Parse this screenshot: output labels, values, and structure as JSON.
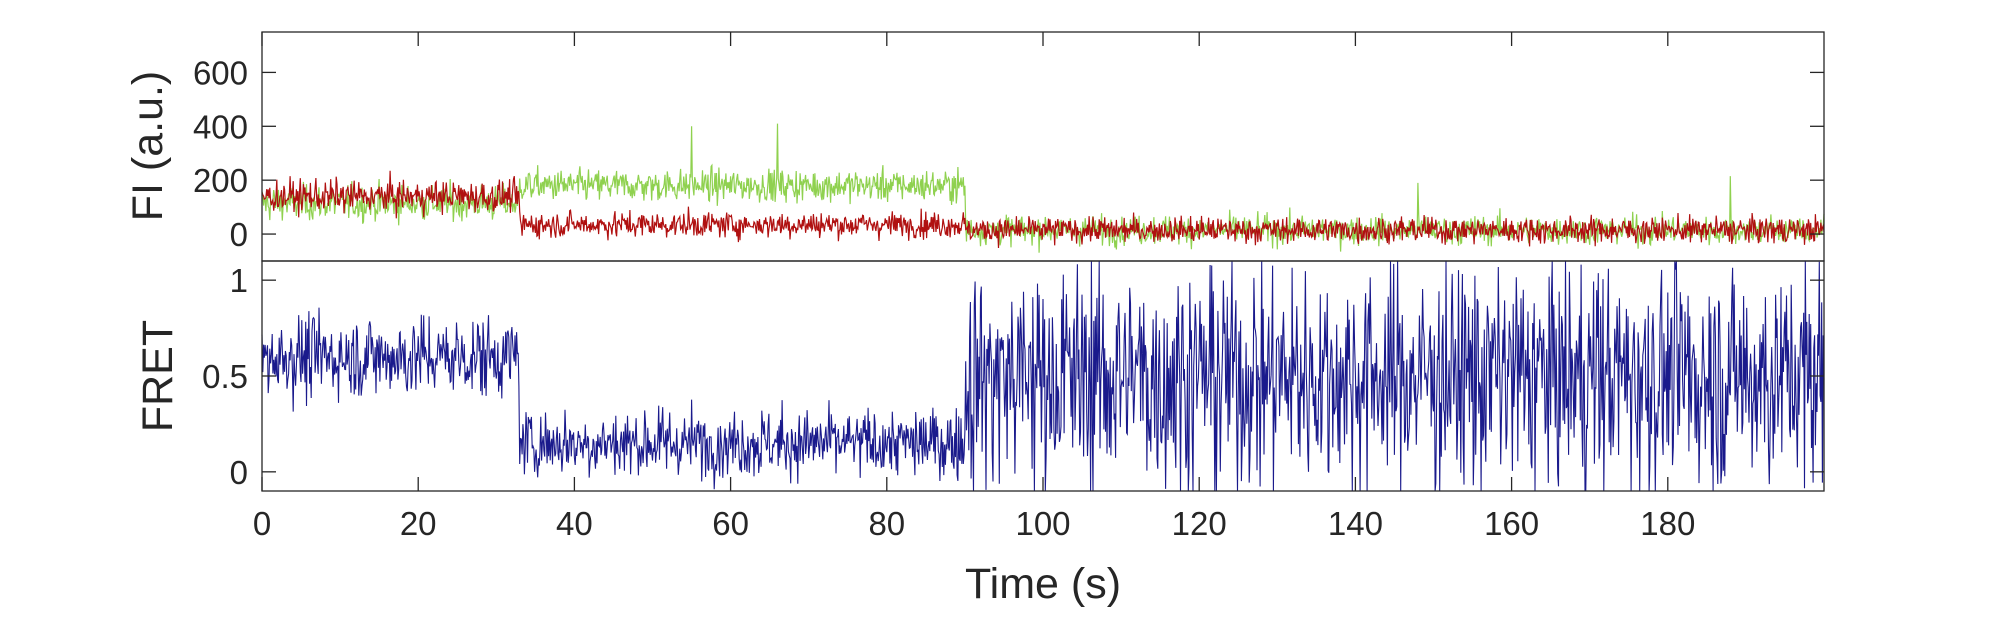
{
  "chart_data": [
    {
      "type": "line",
      "panel": "top",
      "ylabel": "FI (a.u.)",
      "xlim": [
        0,
        200
      ],
      "ylim": [
        -100,
        750
      ],
      "yticks": [
        0,
        200,
        400,
        600
      ],
      "grid": false,
      "series": [
        {
          "color": "#8fd14f",
          "description": "donor trace",
          "segments": [
            {
              "t_start": 0,
              "t_end": 33,
              "mean": 115,
              "noise": 55
            },
            {
              "t_start": 33,
              "t_end": 90,
              "mean": 180,
              "noise": 50
            },
            {
              "t_start": 90,
              "t_end": 200,
              "mean": 15,
              "noise": 45
            }
          ],
          "peaks": [
            {
              "t": 55,
              "value": 400
            },
            {
              "t": 66,
              "value": 410
            },
            {
              "t": 148,
              "value": 190
            },
            {
              "t": 188,
              "value": 215
            }
          ]
        },
        {
          "color": "#b01010",
          "description": "acceptor trace",
          "segments": [
            {
              "t_start": 0,
              "t_end": 33,
              "mean": 140,
              "noise": 50
            },
            {
              "t_start": 33,
              "t_end": 90,
              "mean": 35,
              "noise": 40
            },
            {
              "t_start": 90,
              "t_end": 200,
              "mean": 15,
              "noise": 40
            }
          ]
        }
      ]
    },
    {
      "type": "line",
      "panel": "bottom",
      "xlabel": "Time (s)",
      "ylabel": "FRET",
      "xlim": [
        0,
        200
      ],
      "ylim": [
        -0.1,
        1.1
      ],
      "xticks": [
        0,
        20,
        40,
        60,
        80,
        100,
        120,
        140,
        160,
        180
      ],
      "yticks": [
        0,
        0.5,
        1
      ],
      "ytick_labels": [
        "0",
        "0.5",
        "1"
      ],
      "grid": false,
      "series": [
        {
          "color": "#1a1a8c",
          "segments": [
            {
              "t_start": 0,
              "t_end": 33,
              "mean": 0.6,
              "noise": 0.18
            },
            {
              "t_start": 33,
              "t_end": 90,
              "mean": 0.15,
              "noise": 0.15
            },
            {
              "t_start": 90,
              "t_end": 200,
              "mean": 0.5,
              "noise": 0.5
            }
          ]
        }
      ]
    }
  ]
}
